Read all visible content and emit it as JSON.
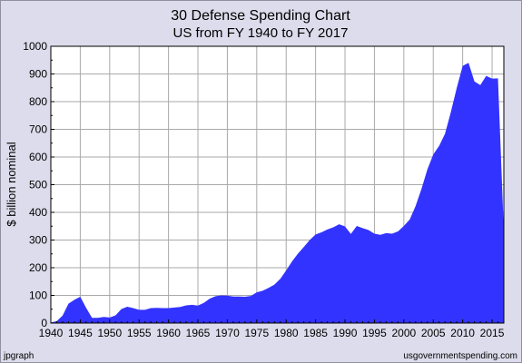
{
  "chart_data": {
    "type": "area",
    "title": "30 Defense Spending Chart",
    "subtitle": "US from FY 1940 to FY 2017",
    "xlabel": "",
    "ylabel": "$ billion nominal",
    "xlim": [
      1940,
      2017
    ],
    "ylim": [
      0,
      1000
    ],
    "x_ticks": [
      1940,
      1945,
      1950,
      1955,
      1960,
      1965,
      1970,
      1975,
      1980,
      1985,
      1990,
      1995,
      2000,
      2005,
      2010,
      2015
    ],
    "y_ticks": [
      0,
      100,
      200,
      300,
      400,
      500,
      600,
      700,
      800,
      900,
      1000
    ],
    "grid": true,
    "legend": "none",
    "colors": {
      "fill": "#3333ff",
      "outer_bg": "#dcdcec",
      "plot_bg": "#ffffff",
      "grid": "#a9a9a9",
      "text": "#000000"
    },
    "series": [
      {
        "x": [
          1940,
          1941,
          1942,
          1943,
          1944,
          1945,
          1946,
          1947,
          1948,
          1949,
          1950,
          1951,
          1952,
          1953,
          1954,
          1955,
          1956,
          1957,
          1958,
          1959,
          1960,
          1961,
          1962,
          1963,
          1964,
          1965,
          1966,
          1967,
          1968,
          1969,
          1970,
          1971,
          1972,
          1973,
          1974,
          1975,
          1976,
          1977,
          1978,
          1979,
          1980,
          1981,
          1982,
          1983,
          1984,
          1985,
          1986,
          1987,
          1988,
          1989,
          1990,
          1991,
          1992,
          1993,
          1994,
          1995,
          1996,
          1997,
          1998,
          1999,
          2000,
          2001,
          2002,
          2003,
          2004,
          2005,
          2006,
          2007,
          2008,
          2009,
          2010,
          2011,
          2012,
          2013,
          2014,
          2015,
          2016,
          2017
        ],
        "values": [
          2,
          7,
          27,
          70,
          84,
          95,
          55,
          19,
          19,
          22,
          20,
          28,
          51,
          59,
          54,
          48,
          48,
          54,
          55,
          54,
          54,
          56,
          58,
          64,
          66,
          63,
          73,
          88,
          97,
          100,
          99,
          96,
          96,
          95,
          98,
          111,
          117,
          127,
          139,
          160,
          190,
          223,
          251,
          275,
          300,
          320,
          328,
          338,
          346,
          357,
          349,
          322,
          351,
          343,
          336,
          323,
          319,
          325,
          323,
          331,
          351,
          374,
          423,
          485,
          555,
          609,
          640,
          684,
          763,
          850,
          929,
          940,
          873,
          860,
          893,
          883,
          884,
          330
        ]
      }
    ],
    "credits": {
      "left": "jpgraph",
      "right": "usgovernmentspending.com"
    }
  }
}
